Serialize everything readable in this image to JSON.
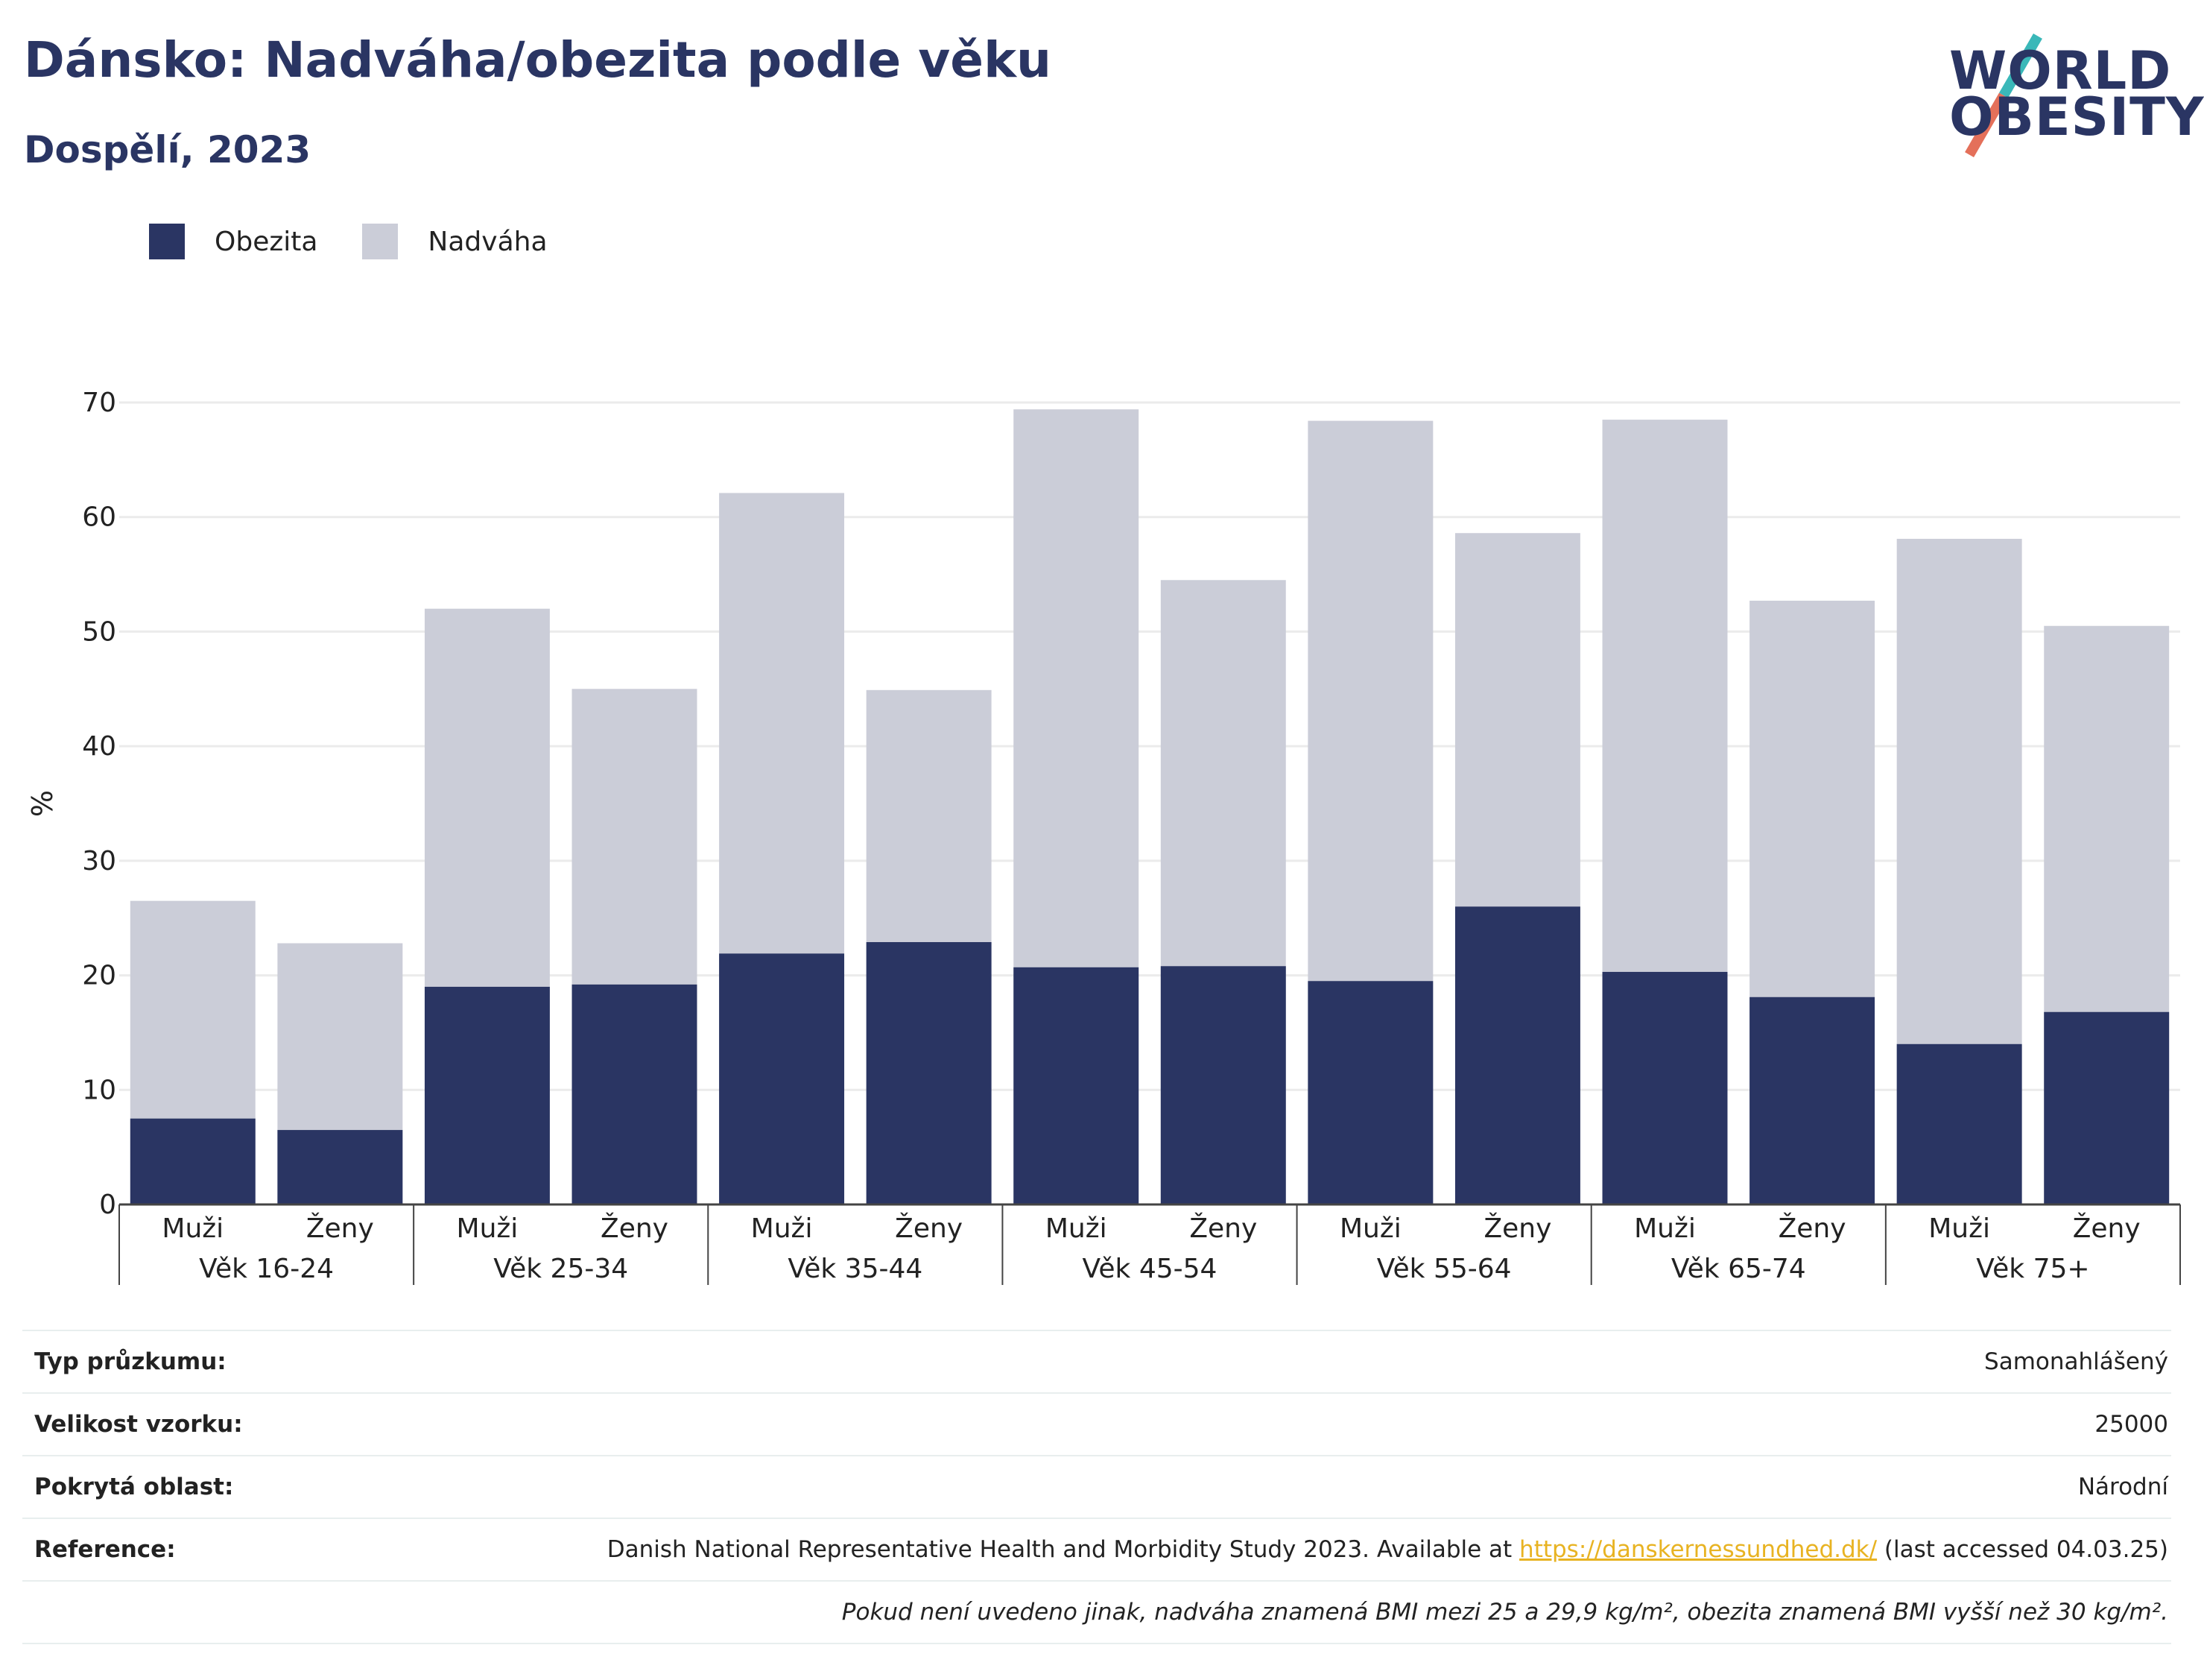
{
  "header": {
    "title": "Dánsko: Nadváha/obezita podle věku",
    "subtitle": "Dospělí, 2023"
  },
  "logo": {
    "line1": "WORLD",
    "line2": "OBESITY"
  },
  "legend": [
    {
      "label": "Obezita",
      "color": "#2a3563"
    },
    {
      "label": "Nadváha",
      "color": "#cbcdd8"
    }
  ],
  "chart_data": {
    "type": "bar",
    "stacked": false,
    "overlay": true,
    "ylabel": "%",
    "ylim": [
      0,
      70
    ],
    "yticks": [
      0,
      10,
      20,
      30,
      40,
      50,
      60,
      70
    ],
    "groups": [
      "Věk 16-24",
      "Věk 25-34",
      "Věk 35-44",
      "Věk 45-54",
      "Věk 55-64",
      "Věk 65-74",
      "Věk 75+"
    ],
    "subcategories": [
      "Muži",
      "Ženy"
    ],
    "series": [
      {
        "name": "Nadváha",
        "color": "#cbcdd8",
        "values": [
          26.5,
          22.8,
          52.0,
          45.0,
          62.1,
          44.9,
          69.4,
          54.5,
          68.4,
          58.6,
          68.5,
          52.7,
          58.1,
          50.5
        ]
      },
      {
        "name": "Obezita",
        "color": "#2a3563",
        "values": [
          7.5,
          6.5,
          19.0,
          19.2,
          21.9,
          22.9,
          20.7,
          20.8,
          19.5,
          26.0,
          20.3,
          18.1,
          14.0,
          16.8
        ]
      }
    ],
    "grid": true,
    "legend_position": "top-left"
  },
  "info": {
    "survey_type": {
      "label": "Typ průzkumu:",
      "value": "Samonahlášený"
    },
    "sample_size": {
      "label": "Velikost vzorku:",
      "value": "25000"
    },
    "coverage": {
      "label": "Pokrytá oblast:",
      "value": "Národní"
    },
    "reference": {
      "label": "Reference:",
      "text_before": "Danish National Representative Health and Morbidity Study 2023. Available at ",
      "link": "https://danskernessundhed.dk/",
      "text_after": " (last accessed 04.03.25)"
    },
    "note": "Pokud není uvedeno jinak, nadváha znamená BMI mezi 25 a 29,9 kg/m², obezita znamená BMI vyšší než 30 kg/m²."
  }
}
